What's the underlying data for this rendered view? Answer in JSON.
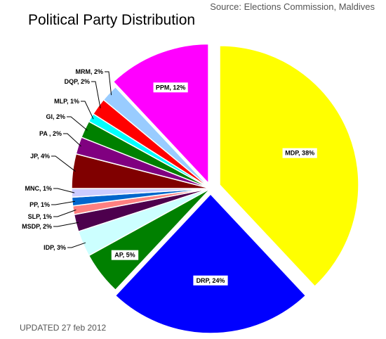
{
  "header": {
    "title": "Political Party Distribution",
    "source": "Source: Elections Commission, Maldives"
  },
  "footer": {
    "updated": "UPDATED 27 feb 2012"
  },
  "chart_data": {
    "type": "pie",
    "title": "Political Party Distribution",
    "slices": [
      {
        "label": "MDP, 38%",
        "name": "MDP",
        "value": 38,
        "color": "#ffff00",
        "label_style": "inside"
      },
      {
        "label": "DRP, 24%",
        "name": "DRP",
        "value": 24,
        "color": "#0000ff",
        "label_style": "inside"
      },
      {
        "label": "AP, 5%",
        "name": "AP",
        "value": 5,
        "color": "#008000",
        "label_style": "inside"
      },
      {
        "label": "IDP, 3%",
        "name": "IDP",
        "value": 3,
        "color": "#ccffff",
        "label_style": "outside"
      },
      {
        "label": "MSDP, 2%",
        "name": "MSDP",
        "value": 2,
        "color": "#4d004d",
        "label_style": "outside"
      },
      {
        "label": "SLP, 1%",
        "name": "SLP",
        "value": 1,
        "color": "#ff8080",
        "label_style": "outside"
      },
      {
        "label": "PP, 1%",
        "name": "PP",
        "value": 1,
        "color": "#0066cc",
        "label_style": "outside"
      },
      {
        "label": "MNC, 1%",
        "name": "MNC",
        "value": 1,
        "color": "#ccccff",
        "label_style": "outside"
      },
      {
        "label": "JP, 4%",
        "name": "JP",
        "value": 4,
        "color": "#800000",
        "label_style": "outside"
      },
      {
        "label": "PA , 2%",
        "name": "PA",
        "value": 2,
        "color": "#800080",
        "label_style": "outside"
      },
      {
        "label": "GI, 2%",
        "name": "GI",
        "value": 2,
        "color": "#008000",
        "label_style": "outside"
      },
      {
        "label": "MLP, 1%",
        "name": "MLP",
        "value": 1,
        "color": "#00ffff",
        "label_style": "outside"
      },
      {
        "label": "DQP, 2%",
        "name": "DQP",
        "value": 2,
        "color": "#ff0000",
        "label_style": "outside"
      },
      {
        "label": "MRM, 2%",
        "name": "MRM",
        "value": 2,
        "color": "#99ccff",
        "label_style": "outside"
      },
      {
        "label": "PPM, 12%",
        "name": "PPM",
        "value": 12,
        "color": "#ff00ff",
        "label_style": "inside"
      }
    ]
  }
}
